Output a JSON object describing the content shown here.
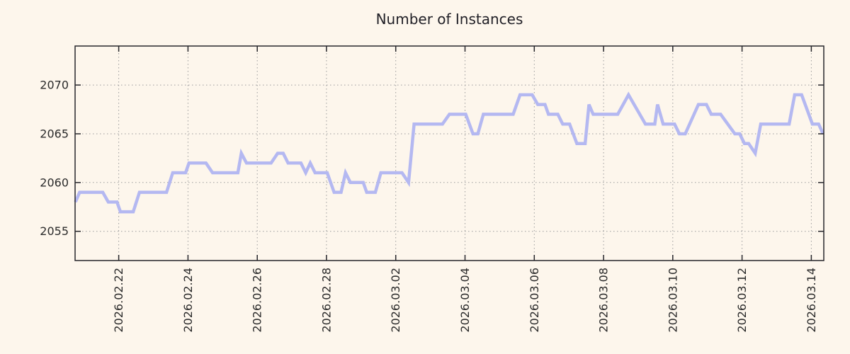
{
  "chart_data": {
    "type": "line",
    "title": "Number of Instances",
    "grid": true,
    "legend": "none",
    "x_unit": "days since 2026-02-22",
    "xlim": [
      -1.26,
      20.36
    ],
    "ylim": [
      2052,
      2074
    ],
    "y_ticks": [
      2055,
      2060,
      2065,
      2070
    ],
    "x_ticks": [
      {
        "d": 0,
        "label": "2026.02.22"
      },
      {
        "d": 2,
        "label": "2026.02.24"
      },
      {
        "d": 4,
        "label": "2026.02.26"
      },
      {
        "d": 6,
        "label": "2026.02.28"
      },
      {
        "d": 8,
        "label": "2026.03.02"
      },
      {
        "d": 10,
        "label": "2026.03.04"
      },
      {
        "d": 12,
        "label": "2026.03.06"
      },
      {
        "d": 14,
        "label": "2026.03.08"
      },
      {
        "d": 16,
        "label": "2026.03.10"
      },
      {
        "d": 18,
        "label": "2026.03.12"
      },
      {
        "d": 20,
        "label": "2026.03.14"
      }
    ],
    "points": [
      [
        -1.25,
        2058
      ],
      [
        -1.13,
        2059
      ],
      [
        -0.46,
        2059
      ],
      [
        -0.3,
        2058
      ],
      [
        -0.05,
        2058
      ],
      [
        0.05,
        2057
      ],
      [
        0.42,
        2057
      ],
      [
        0.6,
        2059
      ],
      [
        1.38,
        2059
      ],
      [
        1.56,
        2061
      ],
      [
        1.93,
        2061
      ],
      [
        2.03,
        2062
      ],
      [
        2.52,
        2062
      ],
      [
        2.71,
        2061
      ],
      [
        3.28,
        2061
      ],
      [
        3.44,
        2061
      ],
      [
        3.54,
        2063
      ],
      [
        3.69,
        2062
      ],
      [
        4.4,
        2062
      ],
      [
        4.59,
        2063
      ],
      [
        4.75,
        2063
      ],
      [
        4.89,
        2062
      ],
      [
        5.26,
        2062
      ],
      [
        5.4,
        2061
      ],
      [
        5.53,
        2062
      ],
      [
        5.67,
        2061
      ],
      [
        6.02,
        2061
      ],
      [
        6.22,
        2059
      ],
      [
        6.42,
        2059
      ],
      [
        6.55,
        2061
      ],
      [
        6.69,
        2060
      ],
      [
        7.06,
        2060
      ],
      [
        7.16,
        2059
      ],
      [
        7.41,
        2059
      ],
      [
        7.57,
        2061
      ],
      [
        8.18,
        2061
      ],
      [
        8.37,
        2060
      ],
      [
        8.53,
        2066
      ],
      [
        9.35,
        2066
      ],
      [
        9.55,
        2067
      ],
      [
        10.02,
        2067
      ],
      [
        10.23,
        2065
      ],
      [
        10.37,
        2065
      ],
      [
        10.53,
        2067
      ],
      [
        11.39,
        2067
      ],
      [
        11.59,
        2069
      ],
      [
        11.94,
        2069
      ],
      [
        12.1,
        2068
      ],
      [
        12.31,
        2068
      ],
      [
        12.41,
        2067
      ],
      [
        12.68,
        2067
      ],
      [
        12.82,
        2066
      ],
      [
        13.02,
        2066
      ],
      [
        13.23,
        2064
      ],
      [
        13.47,
        2064
      ],
      [
        13.58,
        2068
      ],
      [
        13.7,
        2067
      ],
      [
        14.41,
        2067
      ],
      [
        14.72,
        2069
      ],
      [
        15.21,
        2066
      ],
      [
        15.48,
        2066
      ],
      [
        15.56,
        2068
      ],
      [
        15.72,
        2066
      ],
      [
        16.05,
        2066
      ],
      [
        16.19,
        2065
      ],
      [
        16.36,
        2065
      ],
      [
        16.74,
        2068
      ],
      [
        16.97,
        2068
      ],
      [
        17.11,
        2067
      ],
      [
        17.38,
        2067
      ],
      [
        17.79,
        2065
      ],
      [
        17.93,
        2065
      ],
      [
        18.07,
        2064
      ],
      [
        18.19,
        2064
      ],
      [
        18.38,
        2063
      ],
      [
        18.54,
        2066
      ],
      [
        19.36,
        2066
      ],
      [
        19.52,
        2069
      ],
      [
        19.72,
        2069
      ],
      [
        20.03,
        2066
      ],
      [
        20.21,
        2066
      ],
      [
        20.34,
        2065
      ]
    ]
  },
  "colors": {
    "background": "#fdf6ec",
    "line": "#b4b8f1",
    "grid": "#9b9b9b",
    "axis": "#26262b",
    "text": "#2b2b2b"
  }
}
